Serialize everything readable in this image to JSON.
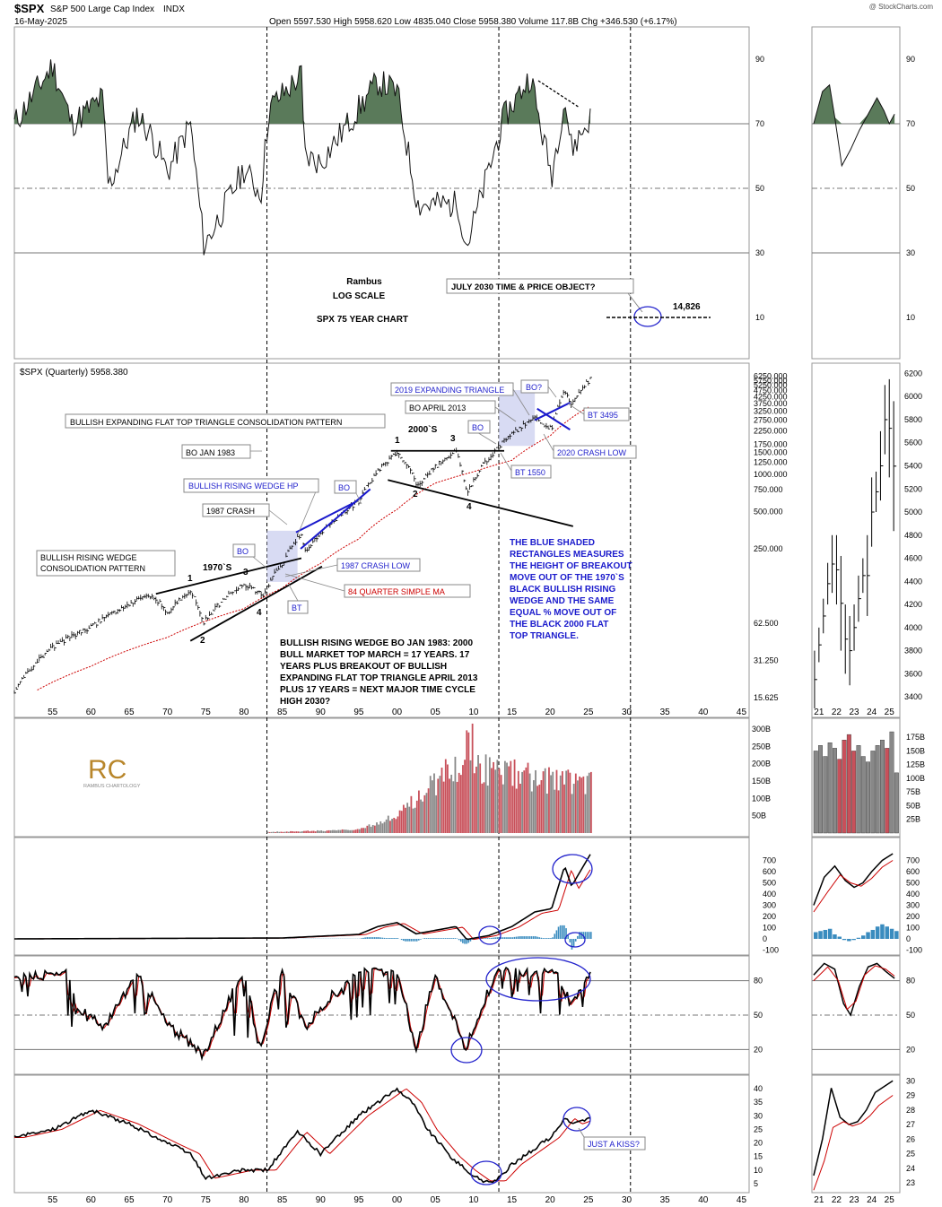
{
  "header": {
    "symbol": "$SPX",
    "name": "S&P 500 Large Cap Index",
    "exchange": "INDX",
    "date": "16-May-2025",
    "quote": "Open 5597.530  High 5958.620  Low 4835.040  Close 5958.380  Volume 117.8B  Chg +346.530 (+6.17%)",
    "credit": "@ StockCharts.com"
  },
  "rsi_panel": {
    "ticks": [
      "90",
      "70",
      "50",
      "30",
      "10"
    ],
    "tick_values": [
      90,
      70,
      50,
      30,
      10
    ],
    "right_ticks": [
      "90",
      "70",
      "50",
      "30",
      "10"
    ]
  },
  "price_panel": {
    "title": "$SPX (Quarterly) 5958.380",
    "scale_label": "LOG SCALE",
    "axis_ticks": [
      "6250.000",
      "5750.000",
      "5250.000",
      "4750.000",
      "4250.000",
      "3750.000",
      "3250.000",
      "2750.000",
      "2250.000",
      "1750.000",
      "1500.000",
      "1250.000",
      "1000.000",
      "750.000",
      "500.000",
      "250.000",
      "62.500",
      "31.250",
      "15.625"
    ],
    "axis_values": [
      6250,
      5750,
      5250,
      4750,
      4250,
      3750,
      3250,
      2750,
      2250,
      1750,
      1500,
      1250,
      1000,
      750,
      500,
      250,
      62.5,
      31.25,
      15.625
    ],
    "right_ticks": [
      "6200",
      "6000",
      "5800",
      "5600",
      "5400",
      "5200",
      "5000",
      "4800",
      "4600",
      "4400",
      "4200",
      "4000",
      "3800",
      "3600",
      "3400"
    ],
    "right_values": [
      6200,
      6000,
      5800,
      5600,
      5400,
      5200,
      5000,
      4800,
      4600,
      4400,
      4200,
      4000,
      3800,
      3600,
      3400
    ]
  },
  "annotations": {
    "author": "Rambus",
    "log_scale": "LOG SCALE",
    "chart_name": "SPX 75 YEAR CHART",
    "target_box": "JULY 2030 TIME & PRICE OBJECT?",
    "target_value": "14,826",
    "expanding_2019": "2019 EXPANDING TRIANGLE",
    "bo_q": "BO?",
    "bo_april_2013": "BO APRIL 2013",
    "bt_3495": "BT 3495",
    "bullish_flat_top": "BULLISH EXPANDING FLAT TOP TRIANGLE CONSOLIDATION PATTERN",
    "years_2000": "2000`S",
    "bo": "BO",
    "crash_2020": "2020 CRASH LOW",
    "bo_jan_1983": "BO JAN 1983",
    "bt_1550": "BT 1550",
    "wedge_hp": "BULLISH RISING WEDGE HP",
    "crash_1987": "1987 CRASH",
    "years_1970": "1970`S",
    "wedge_consolidation_1": "BULLISH RISING WEDGE",
    "wedge_consolidation_2": "CONSOLIDATION PATTERN",
    "crash_low_1987": "1987 CRASH LOW",
    "sma_84": "84 QUARTER SIMPLE MA",
    "bt": "BT",
    "n1": "1",
    "n2": "2",
    "n3": "3",
    "n4": "4",
    "blue_note": [
      "THE BLUE SHADED",
      "RECTANGLES MEASURES",
      "THE HEIGHT OF BREAKOUT",
      "MOVE OUT OF THE 1970`S",
      "BLACK BULLISH RISING",
      "WEDGE AND THE SAME",
      "EQUAL % MOVE OUT OF",
      "THE BLACK 2000 FLAT",
      "TOP TRIANGLE."
    ],
    "black_note": [
      "BULLISH RISING WEDGE BO JAN 1983:  2000",
      "BULL MARKET TOP MARCH = 17 YEARS.  17",
      "YEARS PLUS BREAKOUT OF BULLISH",
      "EXPANDING FLAT TOP TRIANGLE  APRIL 2013",
      "PLUS 17 YEARS = NEXT MAJOR TIME CYCLE",
      "HIGH 2030?"
    ],
    "just_a_kiss": "JUST A KISS?",
    "logo_initials": "RC",
    "logo_text": "RAMBUS CHARTOLOGY"
  },
  "volume_panel": {
    "ticks": [
      "300B",
      "250B",
      "200B",
      "150B",
      "100B",
      "50B"
    ],
    "tick_values": [
      300,
      250,
      200,
      150,
      100,
      50
    ],
    "right_ticks": [
      "175B",
      "150B",
      "125B",
      "100B",
      "75B",
      "50B",
      "25B"
    ],
    "right_values": [
      175,
      150,
      125,
      100,
      75,
      50,
      25
    ]
  },
  "macd_panel": {
    "ticks": [
      "700",
      "600",
      "500",
      "400",
      "300",
      "200",
      "100",
      "0",
      "-100"
    ],
    "tick_values": [
      700,
      600,
      500,
      400,
      300,
      200,
      100,
      0,
      -100
    ]
  },
  "stoch_panel": {
    "ticks": [
      "80",
      "50",
      "20"
    ],
    "tick_values": [
      80,
      50,
      20
    ]
  },
  "adx_panel": {
    "ticks": [
      "40",
      "35",
      "30",
      "25",
      "20",
      "15",
      "10",
      "5"
    ],
    "tick_values": [
      40,
      35,
      30,
      25,
      20,
      15,
      10,
      5
    ],
    "right_ticks": [
      "30",
      "29",
      "28",
      "27",
      "26",
      "25",
      "24",
      "23"
    ],
    "right_values": [
      30,
      29,
      28,
      27,
      26,
      25,
      24,
      23
    ]
  },
  "x_axis": {
    "labels": [
      "55",
      "60",
      "65",
      "70",
      "75",
      "80",
      "85",
      "90",
      "95",
      "00",
      "05",
      "10",
      "15",
      "20",
      "25",
      "30",
      "35",
      "40",
      "45"
    ],
    "years": [
      1955,
      1960,
      1965,
      1970,
      1975,
      1980,
      1985,
      1990,
      1995,
      2000,
      2005,
      2010,
      2015,
      2020,
      2025,
      2030,
      2035,
      2040,
      2045
    ],
    "right_labels": [
      "21",
      "22",
      "23",
      "24",
      "25"
    ],
    "right_years": [
      2021,
      2022,
      2023,
      2024,
      2025
    ]
  },
  "colors": {
    "up_fill": "#5a7a5a",
    "ma_red": "#cc0000",
    "annot_blue": "#2222cc",
    "box_blue": "#c8ccee",
    "hist_blue": "#3a8cbf",
    "vol_red": "#c8505a",
    "vol_gray": "#888888"
  },
  "chart_data": {
    "type": "line",
    "title": "$SPX (Quarterly) 5958.380",
    "log_scale": true,
    "x_range": [
      1950,
      2046
    ],
    "price_key_points": {
      "x": [
        1950,
        1955,
        1960,
        1965,
        1968,
        1970,
        1973,
        1974.7,
        1980,
        1982.5,
        1985,
        1987.5,
        1987.9,
        1990,
        1995,
        2000,
        2002.7,
        2007.7,
        2009.1,
        2013,
        2015,
        2018,
        2020.2,
        2021.9,
        2022.8,
        2025.3
      ],
      "y": [
        17,
        40,
        58,
        90,
        106,
        75,
        115,
        63,
        130,
        105,
        190,
        330,
        230,
        330,
        600,
        1520,
        800,
        1560,
        680,
        1600,
        2100,
        2900,
        2300,
        4790,
        3580,
        5958
      ]
    },
    "sma84_key_points": {
      "x": [
        1953,
        1960,
        1970,
        1980,
        1985,
        1990,
        1995,
        2000,
        2005,
        2010,
        2015,
        2020,
        2025
      ],
      "y": [
        18,
        28,
        48,
        82,
        120,
        190,
        300,
        520,
        850,
        1050,
        1300,
        2050,
        3500
      ]
    },
    "rsi_key_points": {
      "x": [
        1950,
        1955,
        1957.5,
        1961.5,
        1962.3,
        1966,
        1968,
        1970,
        1973,
        1974.8,
        1980,
        1982.2,
        1983.3,
        1987.5,
        1987.9,
        1990,
        1997.5,
        2000,
        2002.7,
        2008,
        2009.1,
        2014,
        2017.5,
        2018.3,
        2020.2,
        2021.9,
        2022.8,
        2025.3
      ],
      "y": [
        70,
        88,
        70,
        78,
        50,
        73,
        66,
        55,
        70,
        32,
        56,
        48,
        75,
        85,
        60,
        58,
        83,
        80,
        45,
        45,
        32,
        72,
        85,
        74,
        54,
        78,
        62,
        72
      ]
    },
    "stoch_key_points": {
      "x": [
        1950,
        1957,
        1958,
        1962,
        1966,
        1970,
        1974.6,
        1980,
        1982,
        1985,
        1987.9,
        1995,
        2000,
        2002.5,
        2005,
        2009,
        2013,
        2018,
        2021,
        2022.8,
        2025
      ],
      "y": [
        85,
        92,
        55,
        40,
        90,
        42,
        15,
        90,
        22,
        92,
        40,
        93,
        90,
        20,
        88,
        20,
        92,
        90,
        91,
        56,
        88
      ]
    },
    "adx_key_points": {
      "x": [
        1950,
        1955,
        1960,
        1965,
        1970,
        1973,
        1975,
        1980,
        1983,
        1985,
        1987,
        1990,
        1995,
        1997,
        2000,
        2002,
        2004,
        2007,
        2009,
        2011,
        2013,
        2015,
        2018,
        2020,
        2022,
        2023,
        2025
      ],
      "y": [
        22,
        25,
        32,
        27,
        20,
        16,
        7,
        10,
        10,
        17,
        24,
        16,
        30,
        34,
        40,
        35,
        25,
        15,
        10,
        6,
        6,
        12,
        18,
        22,
        29,
        27,
        29
      ]
    },
    "macd_key_points": {
      "x": [
        1950,
        1985,
        1995,
        1997.5,
        2000,
        2002.5,
        2007.7,
        2009.1,
        2012,
        2015,
        2018,
        2020.2,
        2021.9,
        2022.8,
        2025.3
      ],
      "y": [
        0,
        8,
        40,
        110,
        145,
        45,
        110,
        -5,
        30,
        110,
        240,
        270,
        650,
        470,
        760
      ]
    },
    "volume_range_B": [
      0,
      300
    ],
    "annotated_target": {
      "date": "July 2030",
      "value": 14826
    }
  }
}
